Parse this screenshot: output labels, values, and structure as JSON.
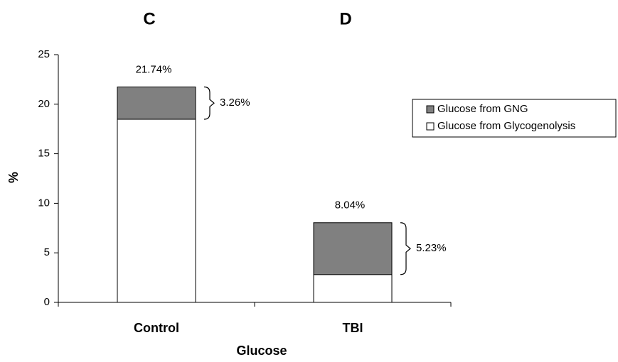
{
  "chart_data": {
    "type": "stacked_bar",
    "panel_labels": [
      "C",
      "D"
    ],
    "xlabel": "Glucose",
    "ylabel": "%",
    "categories": [
      "Control",
      "TBI"
    ],
    "series": [
      {
        "name": "Glucose from Glycogenolysis",
        "color": "#ffffff",
        "values": [
          18.48,
          2.81
        ]
      },
      {
        "name": "Glucose from GNG",
        "color": "#808080",
        "values": [
          3.26,
          5.23
        ],
        "value_labels": [
          "3.26%",
          "5.23%"
        ]
      }
    ],
    "totals": [
      21.74,
      8.04
    ],
    "total_labels": [
      "21.74%",
      "8.04%"
    ],
    "legend_order": [
      1,
      0
    ],
    "ylim": [
      0,
      25
    ],
    "yticks": [
      0,
      5,
      10,
      15,
      20,
      25
    ],
    "grid": false
  }
}
